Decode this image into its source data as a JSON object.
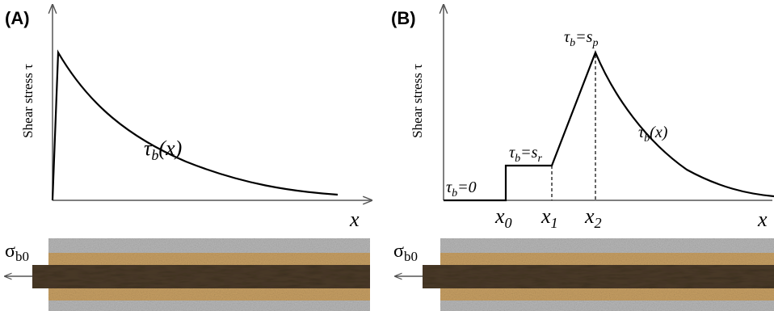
{
  "panels": [
    {
      "label": "(A)",
      "y_axis_label": "Shear stress τ",
      "x_axis_label": "x",
      "load_label": {
        "symbol": "σ",
        "subscript": "b0"
      },
      "curve_label": {
        "symbol": "τ",
        "subscript": "b",
        "suffix": "(x)"
      }
    },
    {
      "label": "(B)",
      "y_axis_label": "Shear stress τ",
      "x_axis_label": "x",
      "load_label": {
        "symbol": "σ",
        "subscript": "b0"
      },
      "curve_label": {
        "symbol": "τ",
        "subscript": "b",
        "suffix": "(x)"
      },
      "zone_labels": [
        {
          "symbol": "τ",
          "subscript": "b",
          "suffix": "=0"
        },
        {
          "symbol": "τ",
          "subscript": "b",
          "suffix": "=s",
          "suffix_subscript": "r"
        },
        {
          "symbol": "τ",
          "subscript": "b",
          "suffix": "=s",
          "suffix_subscript": "p"
        }
      ],
      "positions": [
        {
          "symbol": "x",
          "subscript": "0"
        },
        {
          "symbol": "x",
          "subscript": "1"
        },
        {
          "symbol": "x",
          "subscript": "2"
        }
      ]
    }
  ]
}
